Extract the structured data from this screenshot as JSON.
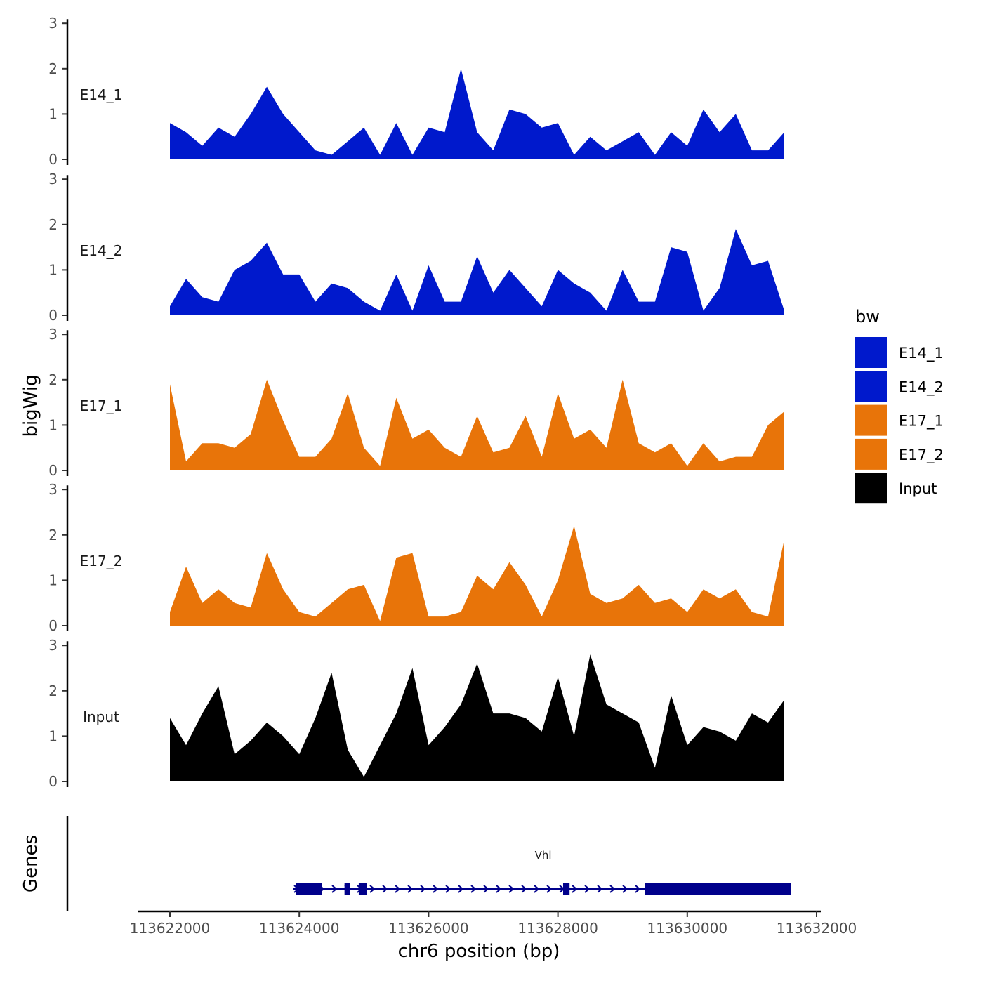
{
  "chart_data": {
    "type": "area",
    "title": "",
    "ylabel": "bigWig",
    "genes_label": "Genes",
    "xlabel": "chr6 position (bp)",
    "xlim": [
      113621600,
      113632000
    ],
    "ylim": [
      0,
      3
    ],
    "x_ticks": [
      {
        "value": 113622000,
        "label": "113622000"
      },
      {
        "value": 113624000,
        "label": "113624000"
      },
      {
        "value": 113626000,
        "label": "113626000"
      },
      {
        "value": 113628000,
        "label": "113628000"
      },
      {
        "value": 113630000,
        "label": "113630000"
      },
      {
        "value": 113632000,
        "label": "113632000"
      }
    ],
    "y_ticks": [
      "0",
      "1",
      "2",
      "3"
    ],
    "legend": {
      "title": "bw",
      "position": "right",
      "entries": [
        {
          "name": "E14_1",
          "color": "#0019cc"
        },
        {
          "name": "E14_2",
          "color": "#0019cc"
        },
        {
          "name": "E17_1",
          "color": "#e87409"
        },
        {
          "name": "E17_2",
          "color": "#e87409"
        },
        {
          "name": "Input",
          "color": "#000000"
        }
      ]
    },
    "x_values": [
      113622000,
      113622250,
      113622500,
      113622750,
      113623000,
      113623250,
      113623500,
      113623750,
      113624000,
      113624250,
      113624500,
      113624750,
      113625000,
      113625250,
      113625500,
      113625750,
      113626000,
      113626250,
      113626500,
      113626750,
      113627000,
      113627250,
      113627500,
      113627750,
      113628000,
      113628250,
      113628500,
      113628750,
      113629000,
      113629250,
      113629500,
      113629750,
      113630000,
      113630250,
      113630500,
      113630750,
      113631000,
      113631250,
      113631500
    ],
    "series": [
      {
        "name": "E14_1",
        "color": "#0019cc",
        "values": [
          0.8,
          0.6,
          0.3,
          0.7,
          0.5,
          1.0,
          1.6,
          1.0,
          0.6,
          0.2,
          0.1,
          0.4,
          0.7,
          0.1,
          0.8,
          0.1,
          0.7,
          0.6,
          2.0,
          0.6,
          0.2,
          1.1,
          1.0,
          0.7,
          0.8,
          0.1,
          0.5,
          0.2,
          0.4,
          0.6,
          0.1,
          0.6,
          0.3,
          1.1,
          0.6,
          1.0,
          0.2,
          0.2,
          0.6
        ]
      },
      {
        "name": "E14_2",
        "color": "#0019cc",
        "values": [
          0.2,
          0.8,
          0.4,
          0.3,
          1.0,
          1.2,
          1.6,
          0.9,
          0.9,
          0.3,
          0.7,
          0.6,
          0.3,
          0.1,
          0.9,
          0.1,
          1.1,
          0.3,
          0.3,
          1.3,
          0.5,
          1.0,
          0.6,
          0.2,
          1.0,
          0.7,
          0.5,
          0.1,
          1.0,
          0.3,
          0.3,
          1.5,
          1.4,
          0.1,
          0.6,
          1.9,
          1.1,
          1.2,
          0.1
        ]
      },
      {
        "name": "E17_1",
        "color": "#e87409",
        "values": [
          1.9,
          0.2,
          0.6,
          0.6,
          0.5,
          0.8,
          2.0,
          1.1,
          0.3,
          0.3,
          0.7,
          1.7,
          0.5,
          0.1,
          1.6,
          0.7,
          0.9,
          0.5,
          0.3,
          1.2,
          0.4,
          0.5,
          1.2,
          0.3,
          1.7,
          0.7,
          0.9,
          0.5,
          2.0,
          0.6,
          0.4,
          0.6,
          0.1,
          0.6,
          0.2,
          0.3,
          0.3,
          1.0,
          1.3
        ]
      },
      {
        "name": "E17_2",
        "color": "#e87409",
        "values": [
          0.3,
          1.3,
          0.5,
          0.8,
          0.5,
          0.4,
          1.6,
          0.8,
          0.3,
          0.2,
          0.5,
          0.8,
          0.9,
          0.1,
          1.5,
          1.6,
          0.2,
          0.2,
          0.3,
          1.1,
          0.8,
          1.4,
          0.9,
          0.2,
          1.0,
          2.2,
          0.7,
          0.5,
          0.6,
          0.9,
          0.5,
          0.6,
          0.3,
          0.8,
          0.6,
          0.8,
          0.3,
          0.2,
          1.9
        ]
      },
      {
        "name": "Input",
        "color": "#000000",
        "values": [
          1.4,
          0.8,
          1.5,
          2.1,
          0.6,
          0.9,
          1.3,
          1.0,
          0.6,
          1.4,
          2.4,
          0.7,
          0.1,
          0.8,
          1.5,
          2.5,
          0.8,
          1.2,
          1.7,
          2.6,
          1.5,
          1.5,
          1.4,
          1.1,
          2.3,
          1.0,
          2.8,
          1.7,
          1.5,
          1.3,
          0.3,
          1.9,
          0.8,
          1.2,
          1.1,
          0.9,
          1.5,
          1.3,
          1.8
        ]
      }
    ],
    "genes": [
      {
        "name": "Vhl",
        "strand": "+",
        "start": 113623900,
        "end": 113631600,
        "color": "#00008b",
        "exons": [
          [
            113623950,
            113624350
          ],
          [
            113624700,
            113624780
          ],
          [
            113624920,
            113625050
          ],
          [
            113628080,
            113628180
          ],
          [
            113629350,
            113631600
          ]
        ]
      }
    ]
  }
}
